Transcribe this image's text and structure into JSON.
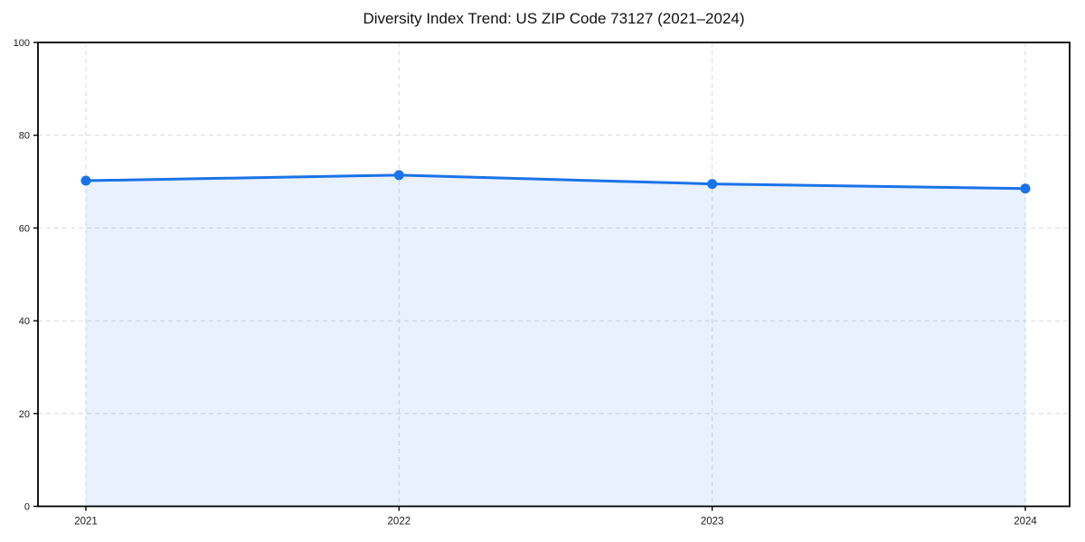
{
  "chart_data": {
    "type": "area",
    "title": "Diversity Index Trend: US ZIP Code 73127 (2021–2024)",
    "categories": [
      "2021",
      "2022",
      "2023",
      "2024"
    ],
    "series": [
      {
        "name": "Diversity Index",
        "values": [
          70.2,
          71.4,
          69.5,
          68.5
        ]
      }
    ],
    "xlabel": "",
    "ylabel": "",
    "ylim": [
      0,
      100
    ],
    "yticks": [
      0,
      20,
      40,
      60,
      80,
      100
    ],
    "grid": "dashed",
    "legend": "none",
    "colors": {
      "line": "#1a73e8",
      "marker": "#1a73e8",
      "fill": "#1a73e8",
      "fill_opacity": "0.10",
      "grid": "#d9d9d9",
      "spine": "#000000",
      "tick_label": "#1a1a1a",
      "background": "#ffffff"
    }
  }
}
